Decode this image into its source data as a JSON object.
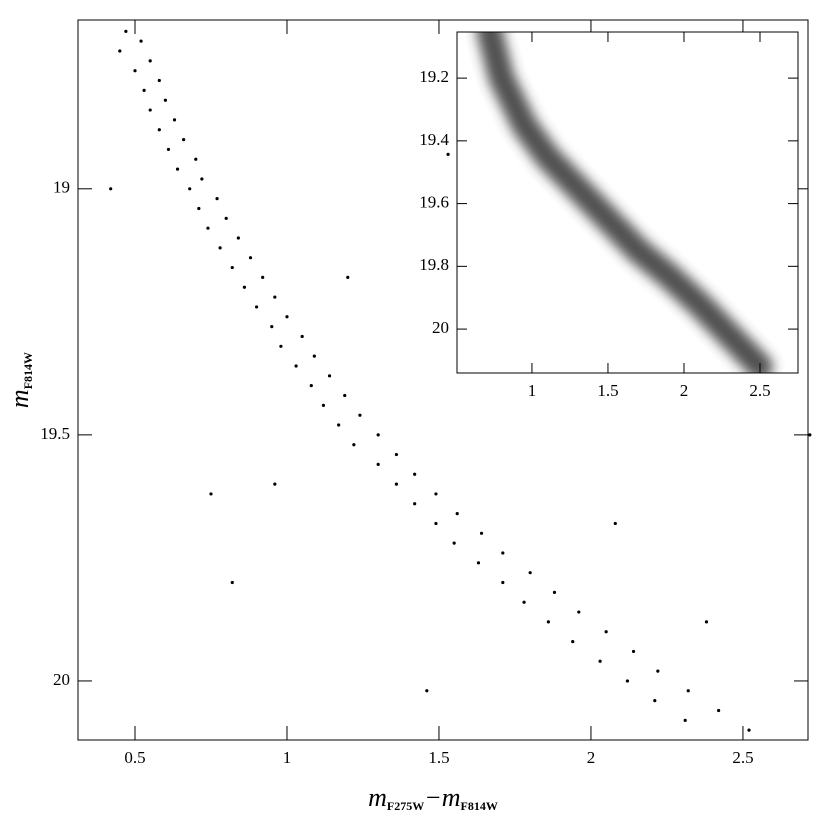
{
  "chart_data": [
    {
      "type": "scatter",
      "color": "#000000",
      "xlabel_parts": [
        "m",
        "F275W",
        "−m",
        "F814W"
      ],
      "ylabel_parts": [
        "m",
        "F814W"
      ],
      "xlim": [
        0.3125,
        2.714
      ],
      "ylim": [
        20.12,
        18.657
      ],
      "xticks": [
        0.5,
        1,
        1.5,
        2,
        2.5
      ],
      "yticks": [
        19,
        19.5,
        20
      ],
      "x": [
        0.47,
        0.52,
        0.45,
        0.55,
        0.5,
        0.58,
        0.53,
        0.6,
        0.55,
        0.63,
        0.58,
        0.66,
        0.61,
        0.7,
        0.64,
        0.72,
        0.68,
        0.77,
        0.71,
        0.8,
        0.74,
        0.84,
        0.78,
        0.88,
        0.82,
        0.92,
        0.86,
        0.96,
        0.9,
        1.0,
        0.95,
        1.05,
        0.98,
        1.09,
        1.03,
        1.14,
        1.08,
        1.19,
        1.12,
        1.24,
        1.17,
        1.3,
        1.22,
        1.36,
        1.3,
        1.42,
        1.36,
        1.49,
        1.42,
        1.56,
        1.49,
        1.64,
        1.55,
        1.71,
        1.63,
        1.8,
        1.71,
        1.88,
        1.78,
        1.96,
        1.86,
        2.05,
        1.94,
        2.14,
        2.03,
        2.22,
        2.12,
        2.32,
        2.21,
        2.42,
        2.31,
        2.52,
        0.42,
        0.75,
        0.96,
        1.53,
        2.08,
        0.82,
        1.46,
        2.72,
        1.2,
        2.38
      ],
      "values": [
        18.68,
        18.7,
        18.72,
        18.74,
        18.76,
        18.78,
        18.8,
        18.82,
        18.84,
        18.86,
        18.88,
        18.9,
        18.92,
        18.94,
        18.96,
        18.98,
        19.0,
        19.02,
        19.04,
        19.06,
        19.08,
        19.1,
        19.12,
        19.14,
        19.16,
        19.18,
        19.2,
        19.22,
        19.24,
        19.26,
        19.28,
        19.3,
        19.32,
        19.34,
        19.36,
        19.38,
        19.4,
        19.42,
        19.44,
        19.46,
        19.48,
        19.5,
        19.52,
        19.54,
        19.56,
        19.58,
        19.6,
        19.62,
        19.64,
        19.66,
        19.68,
        19.7,
        19.72,
        19.74,
        19.76,
        19.78,
        19.8,
        19.82,
        19.84,
        19.86,
        19.88,
        19.9,
        19.92,
        19.94,
        19.96,
        19.98,
        20.0,
        20.02,
        20.04,
        20.06,
        20.08,
        20.1,
        19.0,
        19.62,
        19.6,
        18.93,
        19.68,
        19.8,
        20.02,
        19.5,
        19.18,
        19.88
      ]
    },
    {
      "type": "line",
      "color": "#333333",
      "xlim": [
        0.507,
        2.75
      ],
      "ylim": [
        20.14,
        19.053
      ],
      "xticks": [
        1,
        1.5,
        2,
        2.5
      ],
      "yticks": [
        19.2,
        19.4,
        19.6,
        19.8,
        20
      ],
      "x": [
        0.72,
        0.8,
        0.95,
        1.1,
        1.3,
        1.5,
        1.7,
        1.9,
        2.1,
        2.3,
        2.5
      ],
      "values": [
        19.05,
        19.2,
        19.35,
        19.45,
        19.55,
        19.65,
        19.75,
        19.83,
        19.92,
        20.02,
        20.12
      ]
    }
  ]
}
